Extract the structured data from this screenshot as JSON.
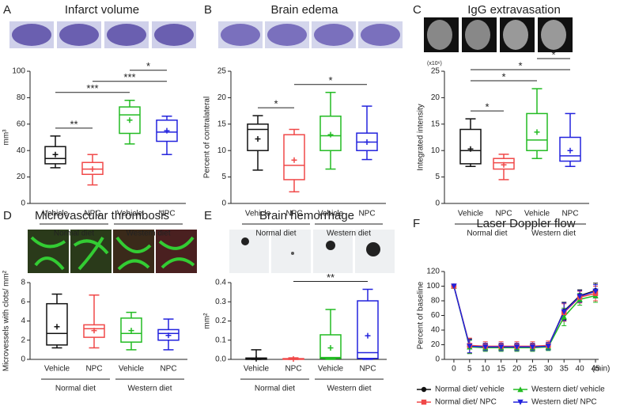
{
  "chart_data": [
    {
      "type": "box",
      "panel_label": "A",
      "title": "Infarct volume",
      "ylabel": "mm³",
      "categories": [
        "Vehicle",
        "NPC",
        "Vehicle",
        "NPC"
      ],
      "groups": [
        "Normal diet",
        "Western diet"
      ],
      "colors": [
        "#111111",
        "#f04848",
        "#22bb22",
        "#2222dd"
      ],
      "ylim": [
        0,
        100
      ],
      "yticks": [
        0,
        20,
        40,
        60,
        80,
        100
      ],
      "boxes": [
        {
          "min": 27,
          "q1": 30,
          "median": 34,
          "q3": 43,
          "max": 51,
          "mean": 37
        },
        {
          "min": 14,
          "q1": 22,
          "median": 26,
          "q3": 31,
          "max": 37,
          "mean": 26
        },
        {
          "min": 45,
          "q1": 53,
          "median": 67,
          "q3": 73,
          "max": 78,
          "mean": 63
        },
        {
          "min": 37,
          "q1": 47,
          "median": 54,
          "q3": 63,
          "max": 66,
          "mean": 55
        }
      ],
      "significance": [
        {
          "between": [
            0,
            1
          ],
          "label": "**"
        },
        {
          "between": [
            0,
            2
          ],
          "label": "***"
        },
        {
          "between": [
            1,
            3
          ],
          "label": "***"
        },
        {
          "between": [
            2,
            3
          ],
          "label": "*"
        }
      ]
    },
    {
      "type": "box",
      "panel_label": "B",
      "title": "Brain edema",
      "ylabel": "Percent of contralateral",
      "categories": [
        "Vehicle",
        "NPC",
        "Vehicle",
        "NPC"
      ],
      "groups": [
        "Normal diet",
        "Western diet"
      ],
      "colors": [
        "#111111",
        "#f04848",
        "#22bb22",
        "#2222dd"
      ],
      "ylim": [
        0,
        25
      ],
      "yticks": [
        0,
        5,
        10,
        15,
        20,
        25
      ],
      "boxes": [
        {
          "min": 6.3,
          "q1": 10,
          "median": 14,
          "q3": 15,
          "max": 16.6,
          "mean": 12.2
        },
        {
          "min": 2.2,
          "q1": 4.5,
          "median": 7.2,
          "q3": 13,
          "max": 14,
          "mean": 8.2
        },
        {
          "min": 6.5,
          "q1": 10,
          "median": 12.8,
          "q3": 16.5,
          "max": 21,
          "mean": 13
        },
        {
          "min": 8.3,
          "q1": 10,
          "median": 11.6,
          "q3": 13.3,
          "max": 18.4,
          "mean": 11.6
        }
      ],
      "significance": [
        {
          "between": [
            0,
            1
          ],
          "label": "*"
        },
        {
          "between": [
            1,
            3
          ],
          "label": "*"
        }
      ]
    },
    {
      "type": "box",
      "panel_label": "C",
      "title": "IgG extravasation",
      "ylabel": "Integrated intensity",
      "multiplier": "(x10⁶)",
      "categories": [
        "Vehicle",
        "NPC",
        "Vehicle",
        "NPC"
      ],
      "groups": [
        "Normal diet",
        "Western diet"
      ],
      "colors": [
        "#111111",
        "#f04848",
        "#22bb22",
        "#2222dd"
      ],
      "ylim": [
        0,
        25
      ],
      "yticks": [
        0,
        5,
        10,
        15,
        20,
        25
      ],
      "boxes": [
        {
          "min": 7,
          "q1": 7.5,
          "median": 10,
          "q3": 14,
          "max": 16,
          "mean": 10.3
        },
        {
          "min": 4.5,
          "q1": 6.5,
          "median": 7.7,
          "q3": 8.5,
          "max": 9.3,
          "mean": 7.3
        },
        {
          "min": 8.5,
          "q1": 10,
          "median": 12,
          "q3": 17,
          "max": 21.7,
          "mean": 13.5
        },
        {
          "min": 7,
          "q1": 8,
          "median": 9,
          "q3": 12.5,
          "max": 17,
          "mean": 10
        }
      ],
      "significance": [
        {
          "between": [
            0,
            1
          ],
          "label": "*"
        },
        {
          "between": [
            0,
            2
          ],
          "label": "*"
        },
        {
          "between": [
            0,
            3
          ],
          "label": "*"
        },
        {
          "between": [
            2,
            3
          ],
          "label": "*"
        }
      ]
    },
    {
      "type": "box",
      "panel_label": "D",
      "title": "Microvascular thrombosis",
      "ylabel": "Microvessels with clots/ mm²",
      "categories": [
        "Vehicle",
        "NPC",
        "Vehicle",
        "NPC"
      ],
      "groups": [
        "Normal diet",
        "Western diet"
      ],
      "colors": [
        "#111111",
        "#f04848",
        "#22bb22",
        "#2222dd"
      ],
      "ylim": [
        0,
        8
      ],
      "yticks": [
        0,
        2,
        4,
        6,
        8
      ],
      "boxes": [
        {
          "min": 1.2,
          "q1": 1.5,
          "median": 2.7,
          "q3": 5.8,
          "max": 6.8,
          "mean": 3.4
        },
        {
          "min": 1.2,
          "q1": 2.3,
          "median": 3.2,
          "q3": 3.6,
          "max": 6.7,
          "mean": 3.0
        },
        {
          "min": 1.0,
          "q1": 1.8,
          "median": 2.7,
          "q3": 4.3,
          "max": 4.9,
          "mean": 3.0
        },
        {
          "min": 1.0,
          "q1": 2.0,
          "median": 2.7,
          "q3": 3.1,
          "max": 4.2,
          "mean": 2.5
        }
      ],
      "significance": []
    },
    {
      "type": "box",
      "panel_label": "E",
      "title": "Brain hemorrhage",
      "ylabel": "mm²",
      "categories": [
        "Vehicle",
        "NPC",
        "Vehicle",
        "NPC"
      ],
      "groups": [
        "Normal diet",
        "Western diet"
      ],
      "colors": [
        "#111111",
        "#f04848",
        "#22bb22",
        "#2222dd"
      ],
      "ylim": [
        0,
        0.4
      ],
      "yticks": [
        {
          "value": 0,
          "label": "0.0"
        },
        0.1,
        0.2,
        0.3,
        0.4
      ],
      "boxes": [
        {
          "min": 0,
          "q1": 0,
          "median": 0.001,
          "q3": 0.007,
          "max": 0.05,
          "mean": 0.003
        },
        {
          "min": 0,
          "q1": 0,
          "median": 0.001,
          "q3": 0.004,
          "max": 0.008,
          "mean": 0.002
        },
        {
          "min": 0,
          "q1": 0.005,
          "median": 0.01,
          "q3": 0.128,
          "max": 0.26,
          "mean": 0.06
        },
        {
          "min": 0,
          "q1": 0.005,
          "median": 0.035,
          "q3": 0.305,
          "max": 0.365,
          "mean": 0.123
        }
      ],
      "significance": [
        {
          "between": [
            1,
            3
          ],
          "label": "**"
        }
      ]
    },
    {
      "type": "line",
      "panel_label": "F",
      "title": "Laser Doppler flow",
      "ylabel": "Percent of baseline",
      "xunit": "(min)",
      "x": [
        0,
        5,
        10,
        15,
        20,
        25,
        30,
        35,
        40,
        45
      ],
      "xlim": [
        -3,
        46
      ],
      "xticks": [
        0,
        5,
        10,
        15,
        20,
        25,
        30,
        35,
        40,
        45
      ],
      "ylim": [
        0,
        120
      ],
      "yticks": [
        0,
        20,
        40,
        60,
        80,
        100,
        120
      ],
      "series": [
        {
          "name": "Normal diet/ vehicle",
          "color": "#111111",
          "marker": "circle",
          "values": [
            100,
            18,
            17,
            17,
            17,
            17,
            18,
            66,
            87,
            94
          ],
          "errors": [
            0,
            10,
            5,
            5,
            5,
            5,
            5,
            12,
            8,
            10
          ]
        },
        {
          "name": "Western diet/ vehicle",
          "color": "#22bb22",
          "marker": "triangle-up",
          "values": [
            100,
            17,
            16,
            16,
            16,
            16,
            17,
            58,
            82,
            87
          ],
          "errors": [
            0,
            9,
            5,
            5,
            5,
            5,
            5,
            12,
            8,
            9
          ]
        },
        {
          "name": "Normal diet/ NPC",
          "color": "#f04848",
          "marker": "square",
          "values": [
            100,
            19,
            18,
            18,
            18,
            18,
            19,
            64,
            85,
            90
          ],
          "errors": [
            0,
            10,
            6,
            6,
            6,
            6,
            6,
            12,
            8,
            10
          ]
        },
        {
          "name": "Western diet/ NPC",
          "color": "#2222dd",
          "marker": "triangle-down",
          "values": [
            100,
            18,
            17,
            17,
            17,
            17,
            18,
            65,
            86,
            93
          ],
          "errors": [
            0,
            9,
            5,
            5,
            5,
            5,
            5,
            12,
            8,
            9
          ]
        }
      ]
    }
  ]
}
